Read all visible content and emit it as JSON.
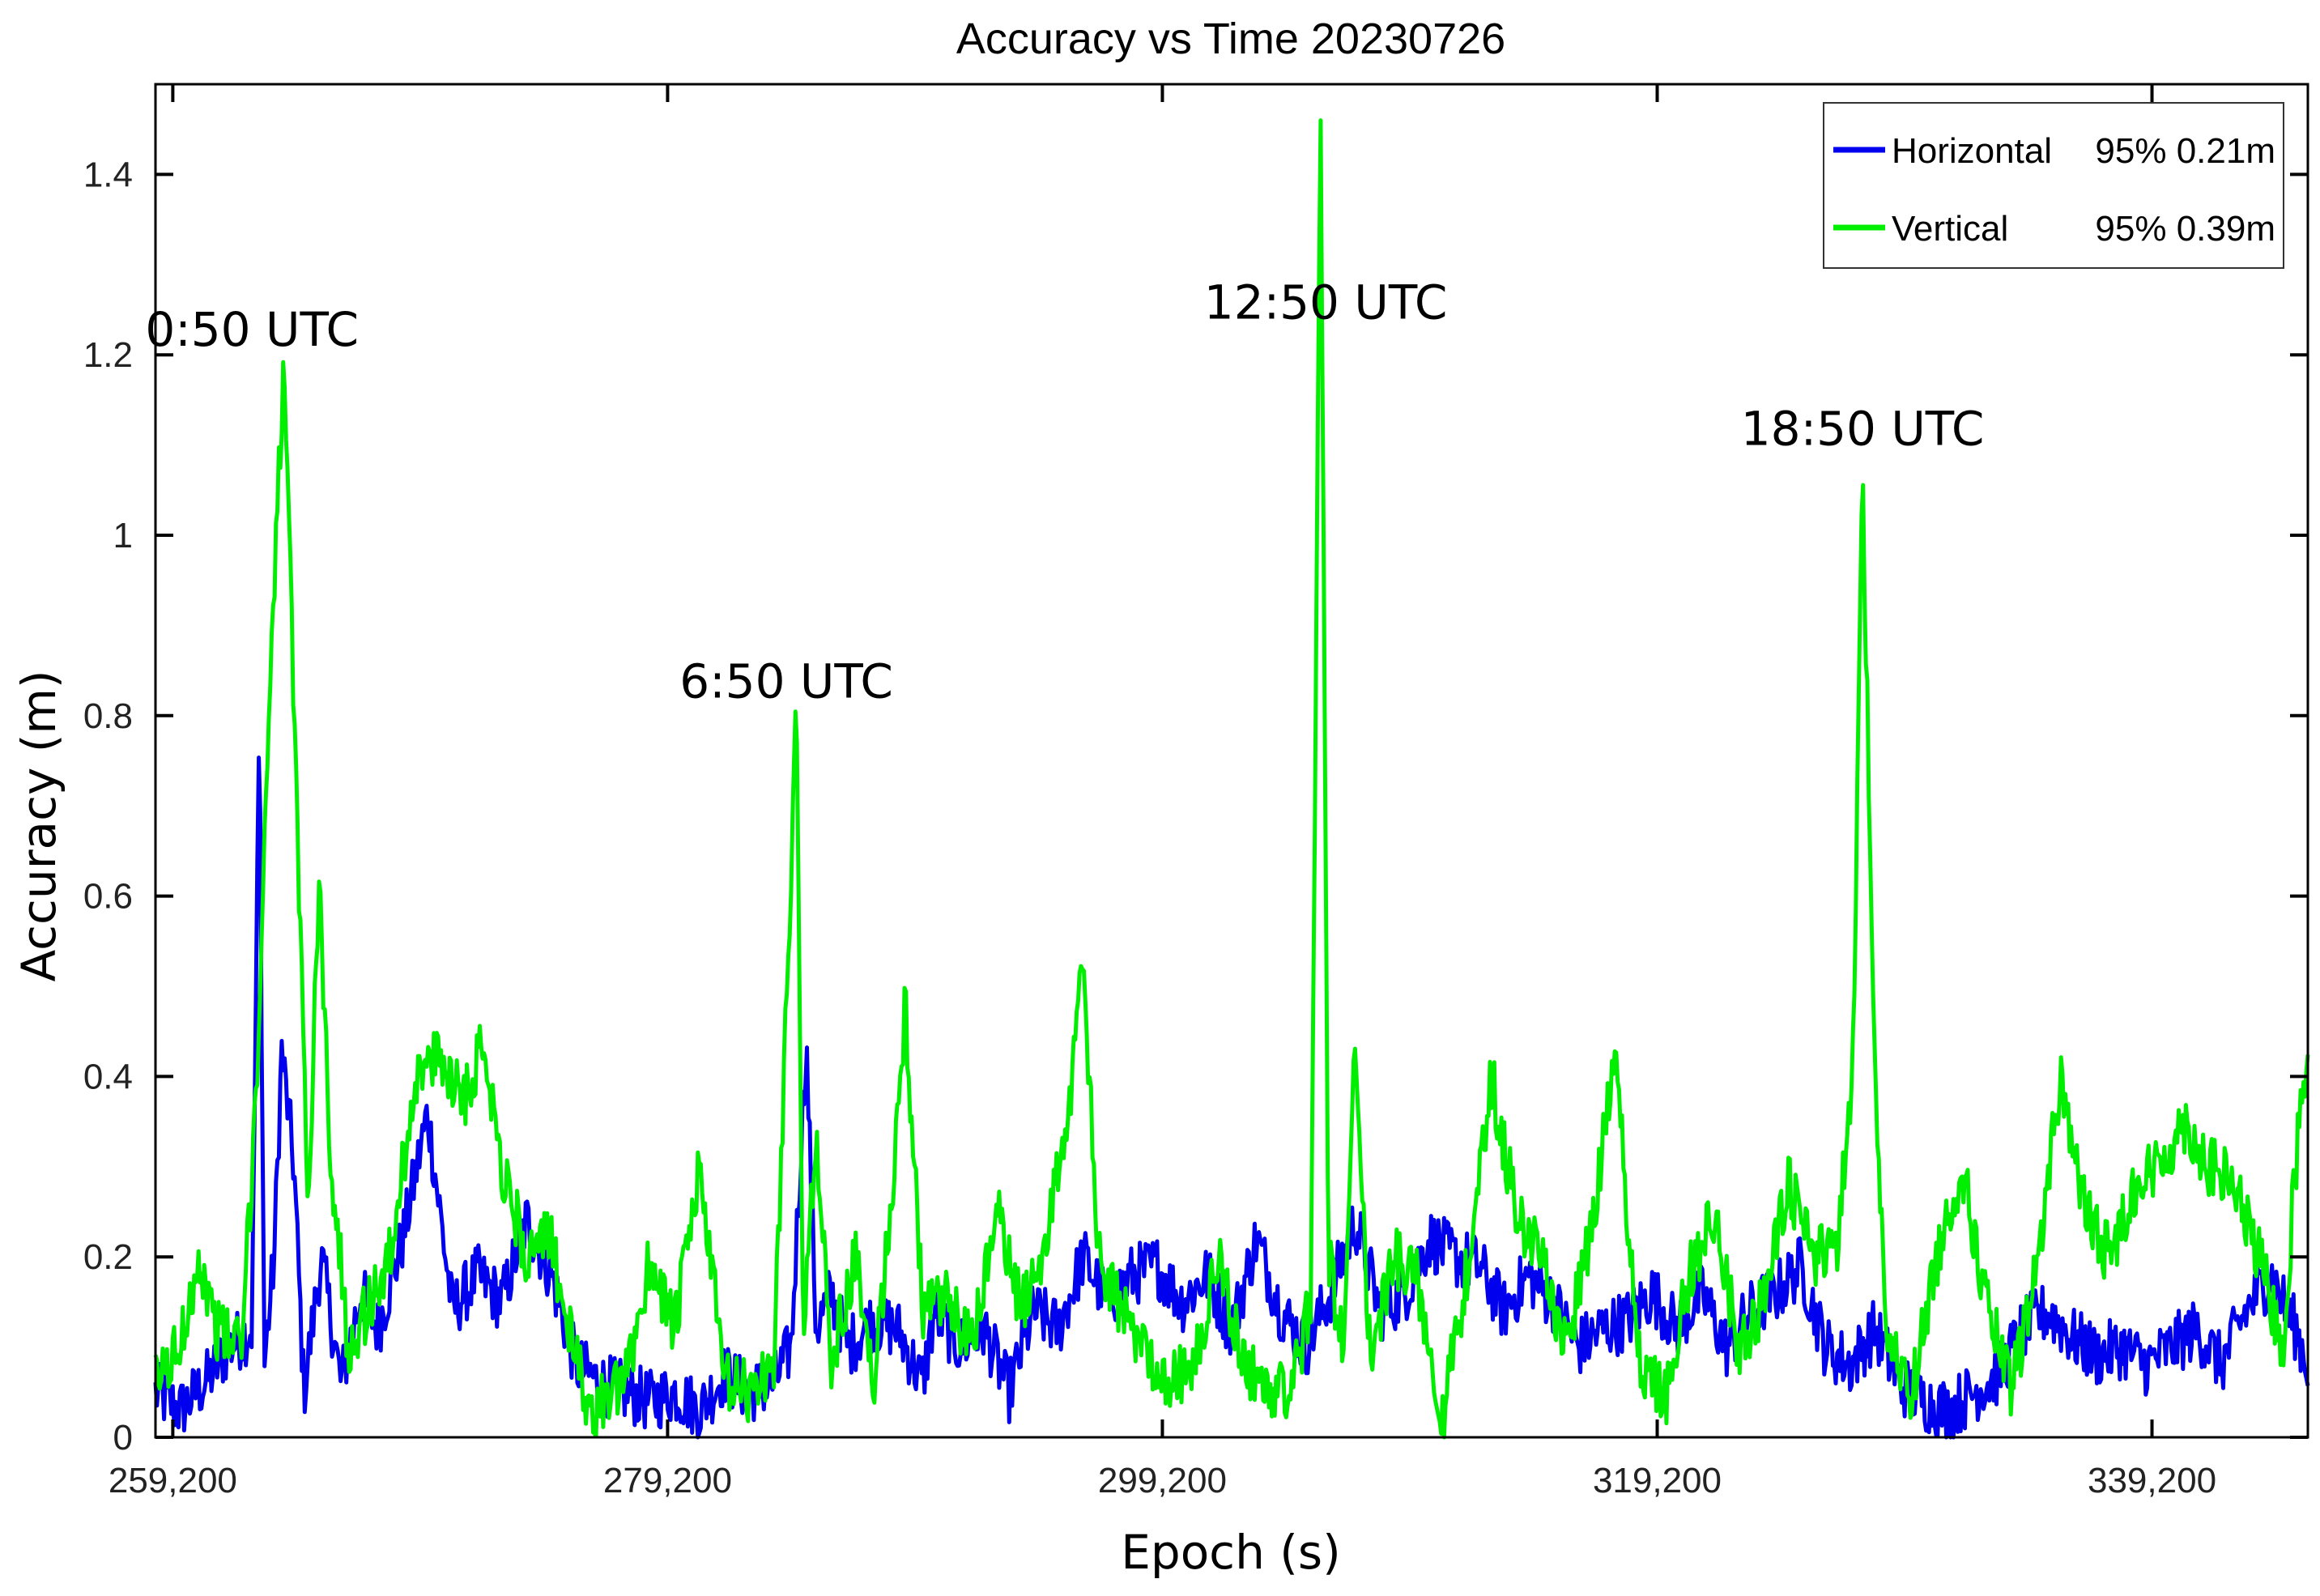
{
  "chart_data": {
    "type": "line",
    "title": "Accuracy vs Time 20230726",
    "xlabel": "Epoch (s)",
    "ylabel": "Accuracy (m)",
    "xlim": [
      258500,
      345500
    ],
    "ylim": [
      0,
      1.5
    ],
    "x_ticks": [
      259200,
      279200,
      299200,
      319200,
      339200
    ],
    "x_tick_labels": [
      "259,200",
      "279,200",
      "299,200",
      "319,200",
      "339,200"
    ],
    "y_ticks": [
      0,
      0.2,
      0.4,
      0.6,
      0.8,
      1,
      1.2,
      1.4
    ],
    "y_tick_labels": [
      "0",
      "0.2",
      "0.4",
      "0.6",
      "0.8",
      "1",
      "1.2",
      "1.4"
    ],
    "grid": false,
    "legend_position": "top-right",
    "legend": [
      {
        "name": "Horizontal",
        "stat": "95% 0.21m"
      },
      {
        "name": "Vertical",
        "stat": "95% 0.39m"
      }
    ],
    "annotations": [
      {
        "text": "0:50 UTC",
        "x": 262400,
        "y": 1.21
      },
      {
        "text": "6:50 UTC",
        "x": 284000,
        "y": 0.82
      },
      {
        "text": "12:50 UTC",
        "x": 305800,
        "y": 1.24
      },
      {
        "text": "18:50 UTC",
        "x": 327500,
        "y": 1.1
      }
    ],
    "series": [
      {
        "name": "Horizontal",
        "color": "#0000ee",
        "anchors": [
          [
            258500,
            0.05
          ],
          [
            259500,
            0.03
          ],
          [
            260500,
            0.06
          ],
          [
            261500,
            0.1
          ],
          [
            262400,
            0.12
          ],
          [
            262700,
            0.8
          ],
          [
            262900,
            0.08
          ],
          [
            263300,
            0.2
          ],
          [
            263600,
            0.43
          ],
          [
            264100,
            0.3
          ],
          [
            264500,
            0.05
          ],
          [
            265200,
            0.2
          ],
          [
            266000,
            0.06
          ],
          [
            266800,
            0.16
          ],
          [
            267500,
            0.12
          ],
          [
            268500,
            0.22
          ],
          [
            269500,
            0.36
          ],
          [
            270500,
            0.14
          ],
          [
            271500,
            0.18
          ],
          [
            272500,
            0.15
          ],
          [
            273500,
            0.24
          ],
          [
            274500,
            0.18
          ],
          [
            275500,
            0.08
          ],
          [
            276500,
            0.06
          ],
          [
            277500,
            0.05
          ],
          [
            278500,
            0.04
          ],
          [
            279500,
            0.05
          ],
          [
            280500,
            0.03
          ],
          [
            281500,
            0.07
          ],
          [
            282500,
            0.05
          ],
          [
            283500,
            0.06
          ],
          [
            284200,
            0.1
          ],
          [
            284800,
            0.44
          ],
          [
            285200,
            0.12
          ],
          [
            285800,
            0.16
          ],
          [
            286500,
            0.1
          ],
          [
            287500,
            0.13
          ],
          [
            288500,
            0.12
          ],
          [
            289500,
            0.06
          ],
          [
            290000,
            0.14
          ],
          [
            291000,
            0.1
          ],
          [
            292000,
            0.12
          ],
          [
            293000,
            0.05
          ],
          [
            294000,
            0.14
          ],
          [
            295000,
            0.12
          ],
          [
            296000,
            0.2
          ],
          [
            297000,
            0.15
          ],
          [
            298000,
            0.18
          ],
          [
            299000,
            0.19
          ],
          [
            300000,
            0.15
          ],
          [
            301000,
            0.18
          ],
          [
            302000,
            0.12
          ],
          [
            303000,
            0.22
          ],
          [
            304000,
            0.14
          ],
          [
            305000,
            0.1
          ],
          [
            306000,
            0.16
          ],
          [
            307000,
            0.24
          ],
          [
            308000,
            0.14
          ],
          [
            309000,
            0.16
          ],
          [
            310000,
            0.22
          ],
          [
            311000,
            0.2
          ],
          [
            312000,
            0.19
          ],
          [
            313000,
            0.14
          ],
          [
            314000,
            0.18
          ],
          [
            315000,
            0.15
          ],
          [
            316000,
            0.1
          ],
          [
            317000,
            0.12
          ],
          [
            318000,
            0.13
          ],
          [
            319000,
            0.16
          ],
          [
            320000,
            0.12
          ],
          [
            321000,
            0.16
          ],
          [
            322000,
            0.1
          ],
          [
            323000,
            0.14
          ],
          [
            324000,
            0.16
          ],
          [
            325000,
            0.19
          ],
          [
            326000,
            0.1
          ],
          [
            327000,
            0.08
          ],
          [
            328000,
            0.12
          ],
          [
            329000,
            0.06
          ],
          [
            330000,
            0.04
          ],
          [
            331000,
            0.03
          ],
          [
            332000,
            0.05
          ],
          [
            333000,
            0.07
          ],
          [
            334000,
            0.12
          ],
          [
            335000,
            0.14
          ],
          [
            336000,
            0.11
          ],
          [
            337000,
            0.09
          ],
          [
            338000,
            0.1
          ],
          [
            339000,
            0.08
          ],
          [
            340000,
            0.1
          ],
          [
            341000,
            0.12
          ],
          [
            342000,
            0.08
          ],
          [
            343000,
            0.14
          ],
          [
            344000,
            0.18
          ],
          [
            345000,
            0.12
          ],
          [
            345500,
            0.08
          ]
        ]
      },
      {
        "name": "Vertical",
        "color": "#00ee00",
        "anchors": [
          [
            258500,
            0.06
          ],
          [
            259500,
            0.1
          ],
          [
            260200,
            0.2
          ],
          [
            261000,
            0.12
          ],
          [
            262000,
            0.1
          ],
          [
            262600,
            0.4
          ],
          [
            263200,
            0.9
          ],
          [
            263700,
            1.19
          ],
          [
            264200,
            0.7
          ],
          [
            264700,
            0.25
          ],
          [
            265100,
            0.62
          ],
          [
            265600,
            0.3
          ],
          [
            266300,
            0.1
          ],
          [
            267200,
            0.15
          ],
          [
            268000,
            0.2
          ],
          [
            269000,
            0.4
          ],
          [
            270000,
            0.42
          ],
          [
            271000,
            0.38
          ],
          [
            271800,
            0.44
          ],
          [
            272500,
            0.3
          ],
          [
            273500,
            0.2
          ],
          [
            274500,
            0.22
          ],
          [
            275200,
            0.12
          ],
          [
            276000,
            0.03
          ],
          [
            276800,
            0.04
          ],
          [
            277500,
            0.06
          ],
          [
            278500,
            0.2
          ],
          [
            279500,
            0.12
          ],
          [
            280500,
            0.3
          ],
          [
            281500,
            0.06
          ],
          [
            282500,
            0.05
          ],
          [
            283500,
            0.08
          ],
          [
            284400,
            0.8
          ],
          [
            284700,
            0.1
          ],
          [
            285200,
            0.35
          ],
          [
            285800,
            0.08
          ],
          [
            286800,
            0.2
          ],
          [
            287500,
            0.05
          ],
          [
            288300,
            0.28
          ],
          [
            288800,
            0.48
          ],
          [
            289500,
            0.14
          ],
          [
            290500,
            0.15
          ],
          [
            291500,
            0.1
          ],
          [
            292500,
            0.25
          ],
          [
            293500,
            0.14
          ],
          [
            294500,
            0.22
          ],
          [
            295500,
            0.38
          ],
          [
            296000,
            0.53
          ],
          [
            296600,
            0.2
          ],
          [
            297500,
            0.14
          ],
          [
            298500,
            0.1
          ],
          [
            299500,
            0.06
          ],
          [
            300500,
            0.08
          ],
          [
            301500,
            0.2
          ],
          [
            302500,
            0.08
          ],
          [
            303500,
            0.05
          ],
          [
            304500,
            0.06
          ],
          [
            305200,
            0.15
          ],
          [
            305600,
            1.5
          ],
          [
            305900,
            0.2
          ],
          [
            306500,
            0.1
          ],
          [
            307000,
            0.45
          ],
          [
            307600,
            0.08
          ],
          [
            308500,
            0.2
          ],
          [
            309500,
            0.18
          ],
          [
            310500,
            0.02
          ],
          [
            311500,
            0.18
          ],
          [
            312500,
            0.4
          ],
          [
            313500,
            0.25
          ],
          [
            314500,
            0.2
          ],
          [
            315500,
            0.1
          ],
          [
            316500,
            0.22
          ],
          [
            317500,
            0.42
          ],
          [
            318500,
            0.08
          ],
          [
            319500,
            0.04
          ],
          [
            320500,
            0.18
          ],
          [
            321500,
            0.25
          ],
          [
            322500,
            0.1
          ],
          [
            323500,
            0.15
          ],
          [
            324500,
            0.28
          ],
          [
            325500,
            0.2
          ],
          [
            326500,
            0.22
          ],
          [
            327100,
            0.4
          ],
          [
            327500,
            1.07
          ],
          [
            328000,
            0.4
          ],
          [
            328500,
            0.1
          ],
          [
            329500,
            0.05
          ],
          [
            330500,
            0.2
          ],
          [
            331500,
            0.3
          ],
          [
            332500,
            0.15
          ],
          [
            333500,
            0.05
          ],
          [
            334500,
            0.18
          ],
          [
            335500,
            0.4
          ],
          [
            336500,
            0.25
          ],
          [
            337500,
            0.2
          ],
          [
            338500,
            0.28
          ],
          [
            339500,
            0.3
          ],
          [
            340500,
            0.35
          ],
          [
            341500,
            0.3
          ],
          [
            342500,
            0.28
          ],
          [
            343500,
            0.2
          ],
          [
            344500,
            0.1
          ],
          [
            345000,
            0.3
          ],
          [
            345500,
            0.44
          ]
        ]
      }
    ]
  }
}
